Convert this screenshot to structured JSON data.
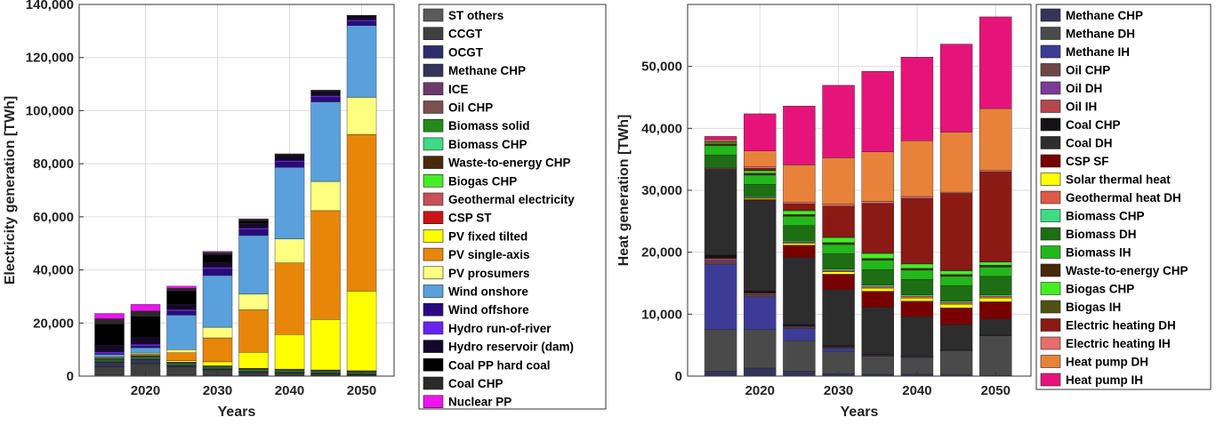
{
  "chart_data": [
    {
      "type": "bar",
      "stacked": true,
      "xlabel": "Years",
      "ylabel": "Electricity generation [TWh]",
      "ylim": [
        0,
        140000
      ],
      "yticks": [
        0,
        20000,
        40000,
        60000,
        80000,
        100000,
        120000,
        140000
      ],
      "ytick_labels": [
        "0",
        "20,000",
        "40,000",
        "60,000",
        "80,000",
        "100,000",
        "120,000",
        "140,000"
      ],
      "categories": [
        2015,
        2020,
        2025,
        2030,
        2035,
        2040,
        2045,
        2050
      ],
      "xticks": [
        2020,
        2030,
        2040,
        2050
      ],
      "xtick_labels": [
        "2020",
        "2030",
        "2040",
        "2050"
      ],
      "grid": true,
      "legend_placement": "right",
      "series": [
        {
          "name": "ST others",
          "color": "#5a5a5a",
          "values": [
            500,
            600,
            400,
            300,
            300,
            300,
            300,
            200
          ]
        },
        {
          "name": "CCGT",
          "color": "#404040",
          "values": [
            3000,
            4000,
            3000,
            2000,
            1000,
            800,
            500,
            300
          ]
        },
        {
          "name": "OCGT",
          "color": "#2e2e6e",
          "values": [
            200,
            200,
            150,
            100,
            100,
            100,
            100,
            100
          ]
        },
        {
          "name": "Methane CHP",
          "color": "#34345a",
          "values": [
            1500,
            1500,
            500,
            200,
            200,
            100,
            100,
            100
          ]
        },
        {
          "name": "ICE",
          "color": "#6b3a6b",
          "values": [
            100,
            100,
            80,
            60,
            40,
            30,
            20,
            20
          ]
        },
        {
          "name": "Oil CHP",
          "color": "#7a5050",
          "values": [
            200,
            100,
            50,
            30,
            20,
            10,
            10,
            10
          ]
        },
        {
          "name": "Biomass solid",
          "color": "#228b1a",
          "values": [
            400,
            300,
            300,
            300,
            300,
            300,
            300,
            300
          ]
        },
        {
          "name": "Biomass CHP",
          "color": "#3ddc84",
          "values": [
            300,
            300,
            300,
            300,
            300,
            300,
            300,
            300
          ]
        },
        {
          "name": "Waste-to-energy CHP",
          "color": "#4a2a0a",
          "values": [
            200,
            200,
            200,
            200,
            200,
            200,
            200,
            200
          ]
        },
        {
          "name": "Biogas CHP",
          "color": "#44ee22",
          "values": [
            200,
            200,
            200,
            200,
            200,
            200,
            200,
            200
          ]
        },
        {
          "name": "Geothermal electricity",
          "color": "#c8505a",
          "values": [
            100,
            100,
            100,
            200,
            200,
            200,
            200,
            200
          ]
        },
        {
          "name": "CSP ST",
          "color": "#c81414",
          "values": [
            0,
            0,
            0,
            0,
            100,
            100,
            100,
            100
          ]
        },
        {
          "name": "PV fixed tilted",
          "color": "#ffff00",
          "values": [
            200,
            300,
            500,
            1500,
            6000,
            13000,
            19000,
            30000
          ]
        },
        {
          "name": "PV single-axis",
          "color": "#e8860a",
          "values": [
            0,
            300,
            3000,
            9000,
            16000,
            27000,
            41000,
            59000
          ]
        },
        {
          "name": "PV prosumers",
          "color": "#ffff80",
          "values": [
            300,
            500,
            1200,
            4000,
            6000,
            9000,
            11000,
            14000
          ]
        },
        {
          "name": "Wind onshore",
          "color": "#5aa0dc",
          "values": [
            1000,
            2000,
            13000,
            19500,
            22000,
            27000,
            30000,
            27000
          ]
        },
        {
          "name": "Wind offshore",
          "color": "#2a0a80",
          "values": [
            200,
            600,
            1500,
            2500,
            2200,
            2000,
            1800,
            1600
          ]
        },
        {
          "name": "Hydro run-of-river",
          "color": "#6a22f0",
          "values": [
            700,
            700,
            600,
            600,
            600,
            500,
            500,
            500
          ]
        },
        {
          "name": "Hydro reservoir (dam)",
          "color": "#14082a",
          "values": [
            2500,
            2500,
            2000,
            1800,
            1800,
            1700,
            1700,
            1600
          ]
        },
        {
          "name": "Coal PP hard coal",
          "color": "#000000",
          "values": [
            8000,
            8000,
            5000,
            3000,
            1000,
            500,
            200,
            100
          ]
        },
        {
          "name": "Coal CHP",
          "color": "#2a2a2a",
          "values": [
            2000,
            2000,
            1000,
            800,
            500,
            300,
            200,
            100
          ]
        },
        {
          "name": "Nuclear PP",
          "color": "#ee14ee",
          "values": [
            2000,
            2500,
            800,
            400,
            200,
            100,
            0,
            0
          ]
        }
      ]
    },
    {
      "type": "bar",
      "stacked": true,
      "xlabel": "Years",
      "ylabel": "Heat generation [TWh]",
      "ylim": [
        0,
        60000
      ],
      "yticks": [
        0,
        10000,
        20000,
        30000,
        40000,
        50000
      ],
      "ytick_labels": [
        "0",
        "10,000",
        "20,000",
        "30,000",
        "40,000",
        "50,000"
      ],
      "categories": [
        2015,
        2020,
        2025,
        2030,
        2035,
        2040,
        2045,
        2050
      ],
      "xticks": [
        2020,
        2030,
        2040,
        2050
      ],
      "xtick_labels": [
        "2020",
        "2030",
        "2040",
        "2050"
      ],
      "grid": true,
      "legend_placement": "right",
      "series": [
        {
          "name": "Methane CHP",
          "color": "#34345a",
          "values": [
            800,
            1300,
            800,
            400,
            300,
            300,
            200,
            100
          ]
        },
        {
          "name": "Methane DH",
          "color": "#4a4a4a",
          "values": [
            6700,
            6200,
            4900,
            3600,
            2900,
            2700,
            3900,
            6400
          ]
        },
        {
          "name": "Methane IH",
          "color": "#3c3c96",
          "values": [
            10600,
            5300,
            2000,
            500,
            100,
            100,
            0,
            0
          ]
        },
        {
          "name": "Oil CHP",
          "color": "#6e4646",
          "values": [
            400,
            300,
            200,
            100,
            100,
            50,
            50,
            50
          ]
        },
        {
          "name": "Oil DH",
          "color": "#7a3c96",
          "values": [
            200,
            100,
            50,
            50,
            50,
            50,
            50,
            50
          ]
        },
        {
          "name": "Oil IH",
          "color": "#b44650",
          "values": [
            300,
            200,
            100,
            100,
            50,
            50,
            50,
            50
          ]
        },
        {
          "name": "Coal CHP",
          "color": "#141414",
          "values": [
            600,
            400,
            300,
            200,
            100,
            50,
            50,
            50
          ]
        },
        {
          "name": "Coal DH",
          "color": "#2d2d2d",
          "values": [
            13800,
            14500,
            10800,
            9000,
            7500,
            6300,
            4000,
            2500
          ]
        },
        {
          "name": "CSP SF",
          "color": "#780000",
          "values": [
            0,
            200,
            2000,
            2500,
            2600,
            2500,
            2700,
            2800
          ]
        },
        {
          "name": "Solar thermal heat",
          "color": "#ffff00",
          "values": [
            100,
            200,
            300,
            400,
            500,
            500,
            600,
            600
          ]
        },
        {
          "name": "Geothermal heat DH",
          "color": "#dc5a46",
          "values": [
            100,
            100,
            150,
            200,
            250,
            300,
            300,
            300
          ]
        },
        {
          "name": "Biomass CHP",
          "color": "#3ddc84",
          "values": [
            100,
            150,
            200,
            200,
            250,
            200,
            200,
            200
          ]
        },
        {
          "name": "Biomass DH",
          "color": "#1e6e14",
          "values": [
            2000,
            2000,
            2500,
            2500,
            2500,
            2500,
            2500,
            3000
          ]
        },
        {
          "name": "Biomass IH",
          "color": "#22b81a",
          "values": [
            1500,
            1500,
            1500,
            1500,
            1500,
            1500,
            1500,
            1500
          ]
        },
        {
          "name": "Waste-to-energy CHP",
          "color": "#46280a",
          "values": [
            300,
            300,
            300,
            300,
            300,
            300,
            300,
            300
          ]
        },
        {
          "name": "Biogas CHP",
          "color": "#44ee22",
          "values": [
            200,
            400,
            600,
            800,
            800,
            700,
            600,
            500
          ]
        },
        {
          "name": "Biogas IH",
          "color": "#505014",
          "values": [
            100,
            100,
            100,
            100,
            100,
            100,
            100,
            100
          ]
        },
        {
          "name": "Electric heating DH",
          "color": "#8c1a14",
          "values": [
            0,
            300,
            1000,
            5000,
            8000,
            10500,
            12400,
            14500
          ]
        },
        {
          "name": "Electric heating IH",
          "color": "#e66e6e",
          "values": [
            200,
            300,
            300,
            300,
            300,
            300,
            200,
            200
          ]
        },
        {
          "name": "Heat pump DH",
          "color": "#e8823a",
          "values": [
            200,
            2500,
            6000,
            7500,
            8000,
            9000,
            9700,
            10000
          ]
        },
        {
          "name": "Heat pump IH",
          "color": "#e6147a",
          "values": [
            500,
            6000,
            9500,
            11700,
            13000,
            13500,
            14200,
            14800
          ]
        }
      ]
    }
  ]
}
